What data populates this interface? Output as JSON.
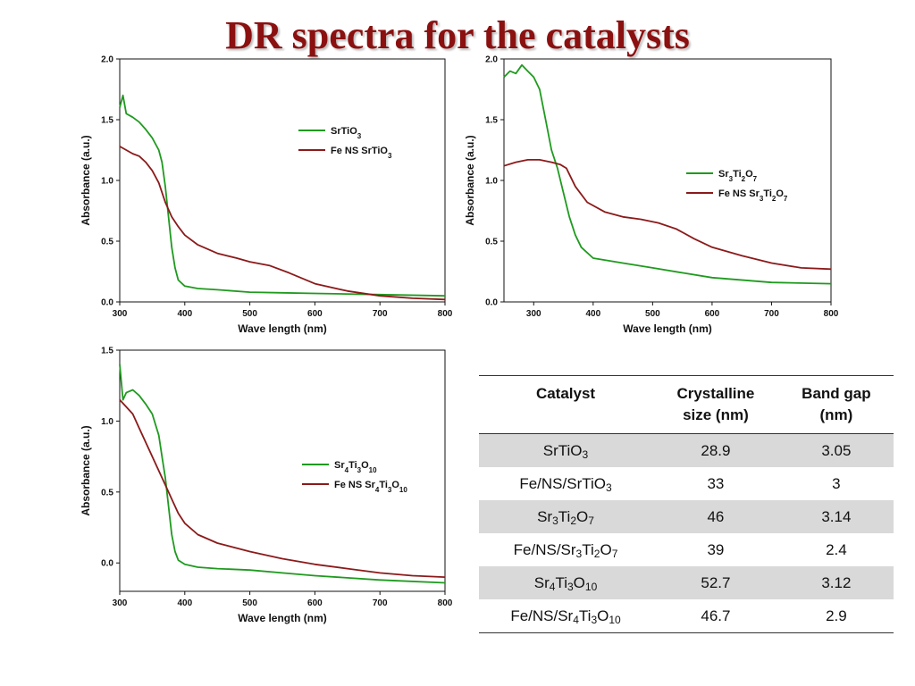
{
  "title": "DR spectra for the catalysts",
  "chart_data": [
    {
      "type": "line",
      "title": "",
      "xlabel": "Wave length (nm)",
      "ylabel": "Absorbance (a.u.)",
      "xlim": [
        300,
        800
      ],
      "ylim": [
        0,
        2
      ],
      "xticks": [
        300,
        400,
        500,
        600,
        700,
        800
      ],
      "yticks": [
        0,
        0.5,
        1,
        1.5,
        2
      ],
      "ytick_labels": [
        "0.0",
        "0.5",
        "1.0",
        "1.5",
        "2.0"
      ],
      "legend_placement": "top-right",
      "series": [
        {
          "name": "SrTiO3",
          "legend_parts": [
            [
              "SrTiO",
              false
            ],
            [
              "3",
              true
            ]
          ],
          "color": "#1f9a1f",
          "x": [
            300,
            305,
            310,
            320,
            330,
            340,
            350,
            360,
            365,
            370,
            375,
            380,
            385,
            390,
            400,
            420,
            450,
            500,
            550,
            600,
            700,
            800
          ],
          "y": [
            1.6,
            1.7,
            1.55,
            1.52,
            1.48,
            1.42,
            1.35,
            1.25,
            1.15,
            0.95,
            0.7,
            0.45,
            0.28,
            0.18,
            0.13,
            0.11,
            0.1,
            0.08,
            0.075,
            0.07,
            0.06,
            0.05
          ]
        },
        {
          "name": "Fe NS SrTiO3",
          "legend_parts": [
            [
              "Fe NS SrTiO",
              false
            ],
            [
              "3",
              true
            ]
          ],
          "color": "#8b1a1a",
          "x": [
            300,
            310,
            320,
            330,
            340,
            350,
            360,
            370,
            380,
            390,
            400,
            420,
            450,
            480,
            500,
            530,
            560,
            600,
            650,
            700,
            750,
            800
          ],
          "y": [
            1.28,
            1.25,
            1.22,
            1.2,
            1.15,
            1.08,
            0.98,
            0.82,
            0.7,
            0.62,
            0.55,
            0.47,
            0.4,
            0.36,
            0.33,
            0.3,
            0.24,
            0.15,
            0.09,
            0.05,
            0.03,
            0.02
          ]
        }
      ]
    },
    {
      "type": "line",
      "title": "",
      "xlabel": "Wave length (nm)",
      "ylabel": "Absorbance (a.u.)",
      "xlim": [
        250,
        800
      ],
      "ylim": [
        0,
        2
      ],
      "xticks": [
        300,
        400,
        500,
        600,
        700,
        800
      ],
      "yticks": [
        0,
        0.5,
        1,
        1.5,
        2
      ],
      "ytick_labels": [
        "0.0",
        "0.5",
        "1.0",
        "1.5",
        "2.0"
      ],
      "legend_placement": "right",
      "series": [
        {
          "name": "Sr3Ti2O7",
          "legend_parts": [
            [
              "Sr",
              false
            ],
            [
              "3",
              true
            ],
            [
              "Ti",
              false
            ],
            [
              "2",
              true
            ],
            [
              "O",
              false
            ],
            [
              "7",
              true
            ]
          ],
          "color": "#1f9a1f",
          "x": [
            250,
            260,
            270,
            280,
            290,
            300,
            310,
            320,
            330,
            340,
            350,
            360,
            370,
            380,
            400,
            450,
            500,
            550,
            600,
            700,
            800
          ],
          "y": [
            1.85,
            1.9,
            1.88,
            1.95,
            1.9,
            1.85,
            1.75,
            1.5,
            1.25,
            1.1,
            0.9,
            0.7,
            0.55,
            0.45,
            0.36,
            0.32,
            0.28,
            0.24,
            0.2,
            0.16,
            0.15
          ]
        },
        {
          "name": "Fe NS Sr3Ti2O7",
          "legend_parts": [
            [
              "Fe NS Sr",
              false
            ],
            [
              "3",
              true
            ],
            [
              "Ti",
              false
            ],
            [
              "2",
              true
            ],
            [
              "O",
              false
            ],
            [
              "7",
              true
            ]
          ],
          "color": "#8b1a1a",
          "x": [
            250,
            270,
            290,
            310,
            330,
            345,
            355,
            370,
            390,
            420,
            450,
            480,
            510,
            540,
            570,
            600,
            650,
            700,
            750,
            800
          ],
          "y": [
            1.12,
            1.15,
            1.17,
            1.17,
            1.15,
            1.13,
            1.1,
            0.95,
            0.82,
            0.74,
            0.7,
            0.68,
            0.65,
            0.6,
            0.52,
            0.45,
            0.38,
            0.32,
            0.28,
            0.27
          ]
        }
      ]
    },
    {
      "type": "line",
      "title": "",
      "xlabel": "Wave length (nm)",
      "ylabel": "Absorbance (a.u.)",
      "xlim": [
        300,
        800
      ],
      "ylim": [
        -0.2,
        1.5
      ],
      "xticks": [
        300,
        400,
        500,
        600,
        700,
        800
      ],
      "yticks": [
        0,
        0.5,
        1,
        1.5
      ],
      "ytick_labels": [
        "0.0",
        "0.5",
        "1.0",
        "1.5"
      ],
      "legend_placement": "right",
      "series": [
        {
          "name": "Sr4Ti3O10",
          "legend_parts": [
            [
              "Sr",
              false
            ],
            [
              "4",
              true
            ],
            [
              "Ti",
              false
            ],
            [
              "3",
              true
            ],
            [
              "O",
              false
            ],
            [
              "10",
              true
            ]
          ],
          "color": "#1f9a1f",
          "x": [
            300,
            305,
            310,
            320,
            330,
            340,
            350,
            360,
            365,
            370,
            375,
            380,
            385,
            390,
            400,
            420,
            450,
            500,
            550,
            600,
            700,
            800
          ],
          "y": [
            1.4,
            1.15,
            1.2,
            1.22,
            1.18,
            1.12,
            1.05,
            0.9,
            0.75,
            0.6,
            0.4,
            0.2,
            0.08,
            0.02,
            -0.01,
            -0.03,
            -0.04,
            -0.05,
            -0.07,
            -0.09,
            -0.12,
            -0.14
          ]
        },
        {
          "name": "Fe NS Sr4Ti3O10",
          "legend_parts": [
            [
              "Fe NS Sr",
              false
            ],
            [
              "4",
              true
            ],
            [
              "Ti",
              false
            ],
            [
              "3",
              true
            ],
            [
              "O",
              false
            ],
            [
              "10",
              true
            ]
          ],
          "color": "#8b1a1a",
          "x": [
            300,
            310,
            320,
            330,
            340,
            350,
            360,
            370,
            380,
            390,
            400,
            420,
            450,
            500,
            550,
            600,
            650,
            700,
            750,
            800
          ],
          "y": [
            1.15,
            1.1,
            1.05,
            0.95,
            0.85,
            0.75,
            0.65,
            0.55,
            0.45,
            0.35,
            0.28,
            0.2,
            0.14,
            0.08,
            0.03,
            -0.01,
            -0.04,
            -0.07,
            -0.09,
            -0.1
          ]
        }
      ]
    }
  ],
  "table": {
    "headers": [
      {
        "l1": "Catalyst",
        "l2": ""
      },
      {
        "l1": "Crystalline",
        "l2": "size (nm)"
      },
      {
        "l1": "Band gap",
        "l2": "(nm)"
      }
    ],
    "rows": [
      {
        "catalyst": [
          [
            "SrTiO",
            false
          ],
          [
            "3",
            true
          ]
        ],
        "size": "28.9",
        "gap": "3.05"
      },
      {
        "catalyst": [
          [
            "Fe/NS/SrTiO",
            false
          ],
          [
            "3",
            true
          ]
        ],
        "size": "33",
        "gap": "3"
      },
      {
        "catalyst": [
          [
            "Sr",
            false
          ],
          [
            "3",
            true
          ],
          [
            "Ti",
            false
          ],
          [
            "2",
            true
          ],
          [
            "O",
            false
          ],
          [
            "7",
            true
          ]
        ],
        "size": "46",
        "gap": "3.14"
      },
      {
        "catalyst": [
          [
            "Fe/NS/Sr",
            false
          ],
          [
            "3",
            true
          ],
          [
            "Ti",
            false
          ],
          [
            "2",
            true
          ],
          [
            "O",
            false
          ],
          [
            "7",
            true
          ]
        ],
        "size": "39",
        "gap": "2.4"
      },
      {
        "catalyst": [
          [
            "Sr",
            false
          ],
          [
            "4",
            true
          ],
          [
            "Ti",
            false
          ],
          [
            "3",
            true
          ],
          [
            "O",
            false
          ],
          [
            "10",
            true
          ]
        ],
        "size": "52.7",
        "gap": "3.12"
      },
      {
        "catalyst": [
          [
            "Fe/NS/Sr",
            false
          ],
          [
            "4",
            true
          ],
          [
            "Ti",
            false
          ],
          [
            "3",
            true
          ],
          [
            "O",
            false
          ],
          [
            "10",
            true
          ]
        ],
        "size": "46.7",
        "gap": "2.9"
      }
    ]
  }
}
